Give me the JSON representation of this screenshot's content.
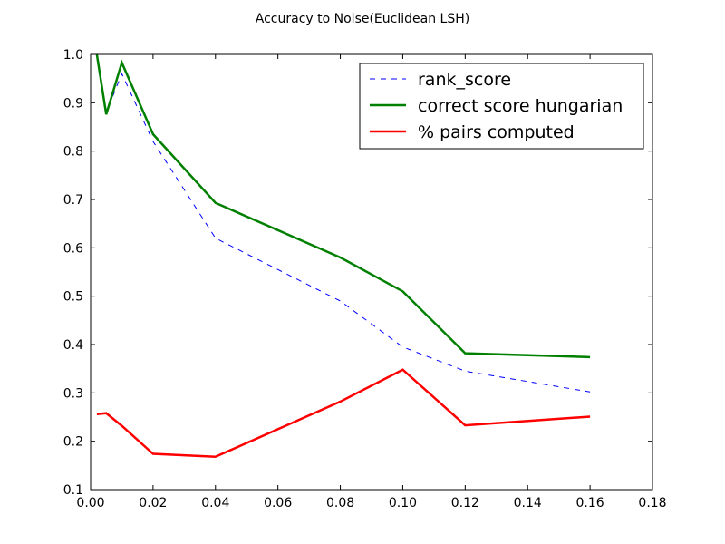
{
  "chart_data": {
    "type": "line",
    "title": "Accuracy to Noise(Euclidean LSH)",
    "xlabel": "",
    "ylabel": "",
    "xlim": [
      0.0,
      0.18
    ],
    "ylim": [
      0.1,
      1.0
    ],
    "xticks": [
      0.0,
      0.02,
      0.04,
      0.06,
      0.08,
      0.1,
      0.12,
      0.14,
      0.16,
      0.18
    ],
    "xtick_labels": [
      "0.00",
      "0.02",
      "0.04",
      "0.06",
      "0.08",
      "0.10",
      "0.12",
      "0.14",
      "0.16",
      "0.18"
    ],
    "yticks": [
      0.1,
      0.2,
      0.3,
      0.4,
      0.5,
      0.6,
      0.7,
      0.8,
      0.9,
      1.0
    ],
    "ytick_labels": [
      "0.1",
      "0.2",
      "0.3",
      "0.4",
      "0.5",
      "0.6",
      "0.7",
      "0.8",
      "0.9",
      "1.0"
    ],
    "grid": false,
    "legend_position": "top-right",
    "x": [
      0.002,
      0.005,
      0.01,
      0.02,
      0.04,
      0.08,
      0.1,
      0.12,
      0.16
    ],
    "series": [
      {
        "name": "rank_score",
        "color": "#0000ff",
        "style": "dashed",
        "values": [
          1.0,
          0.88,
          0.96,
          0.82,
          0.62,
          0.49,
          0.395,
          0.345,
          0.302
        ]
      },
      {
        "name": "correct score hungarian",
        "color": "#008000",
        "style": "solid",
        "values": [
          1.0,
          0.876,
          0.983,
          0.835,
          0.693,
          0.58,
          0.51,
          0.382,
          0.374
        ]
      },
      {
        "name": "% pairs computed",
        "color": "#ff0000",
        "style": "solid",
        "values": [
          0.256,
          0.258,
          0.232,
          0.174,
          0.168,
          0.282,
          0.348,
          0.233,
          0.251
        ]
      }
    ]
  }
}
